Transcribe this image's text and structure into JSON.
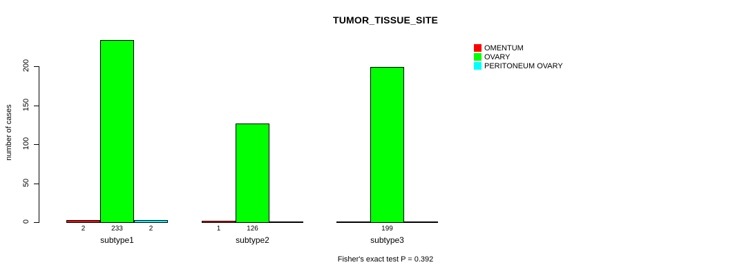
{
  "chart_data": {
    "type": "bar",
    "title": "TUMOR_TISSUE_SITE",
    "ylabel": "number of cases",
    "categories": [
      "subtype1",
      "subtype2",
      "subtype3"
    ],
    "series": [
      {
        "name": "OMENTUM",
        "color": "#ff0000",
        "values": [
          2,
          1,
          0
        ]
      },
      {
        "name": "OVARY",
        "color": "#00ff00",
        "values": [
          233,
          126,
          199
        ]
      },
      {
        "name": "PERITONEUM OVARY",
        "color": "#00ffff",
        "values": [
          2,
          0,
          0
        ]
      }
    ],
    "bar_value_labels": [
      [
        "2",
        "1",
        ""
      ],
      [
        "233",
        "126",
        "199"
      ],
      [
        "2",
        "",
        ""
      ]
    ],
    "yticks": [
      0,
      50,
      100,
      150,
      200
    ],
    "ylim": [
      0,
      240
    ],
    "grid": false,
    "legend_position": "right",
    "annotation": "Fisher's exact test P = 0.392"
  }
}
